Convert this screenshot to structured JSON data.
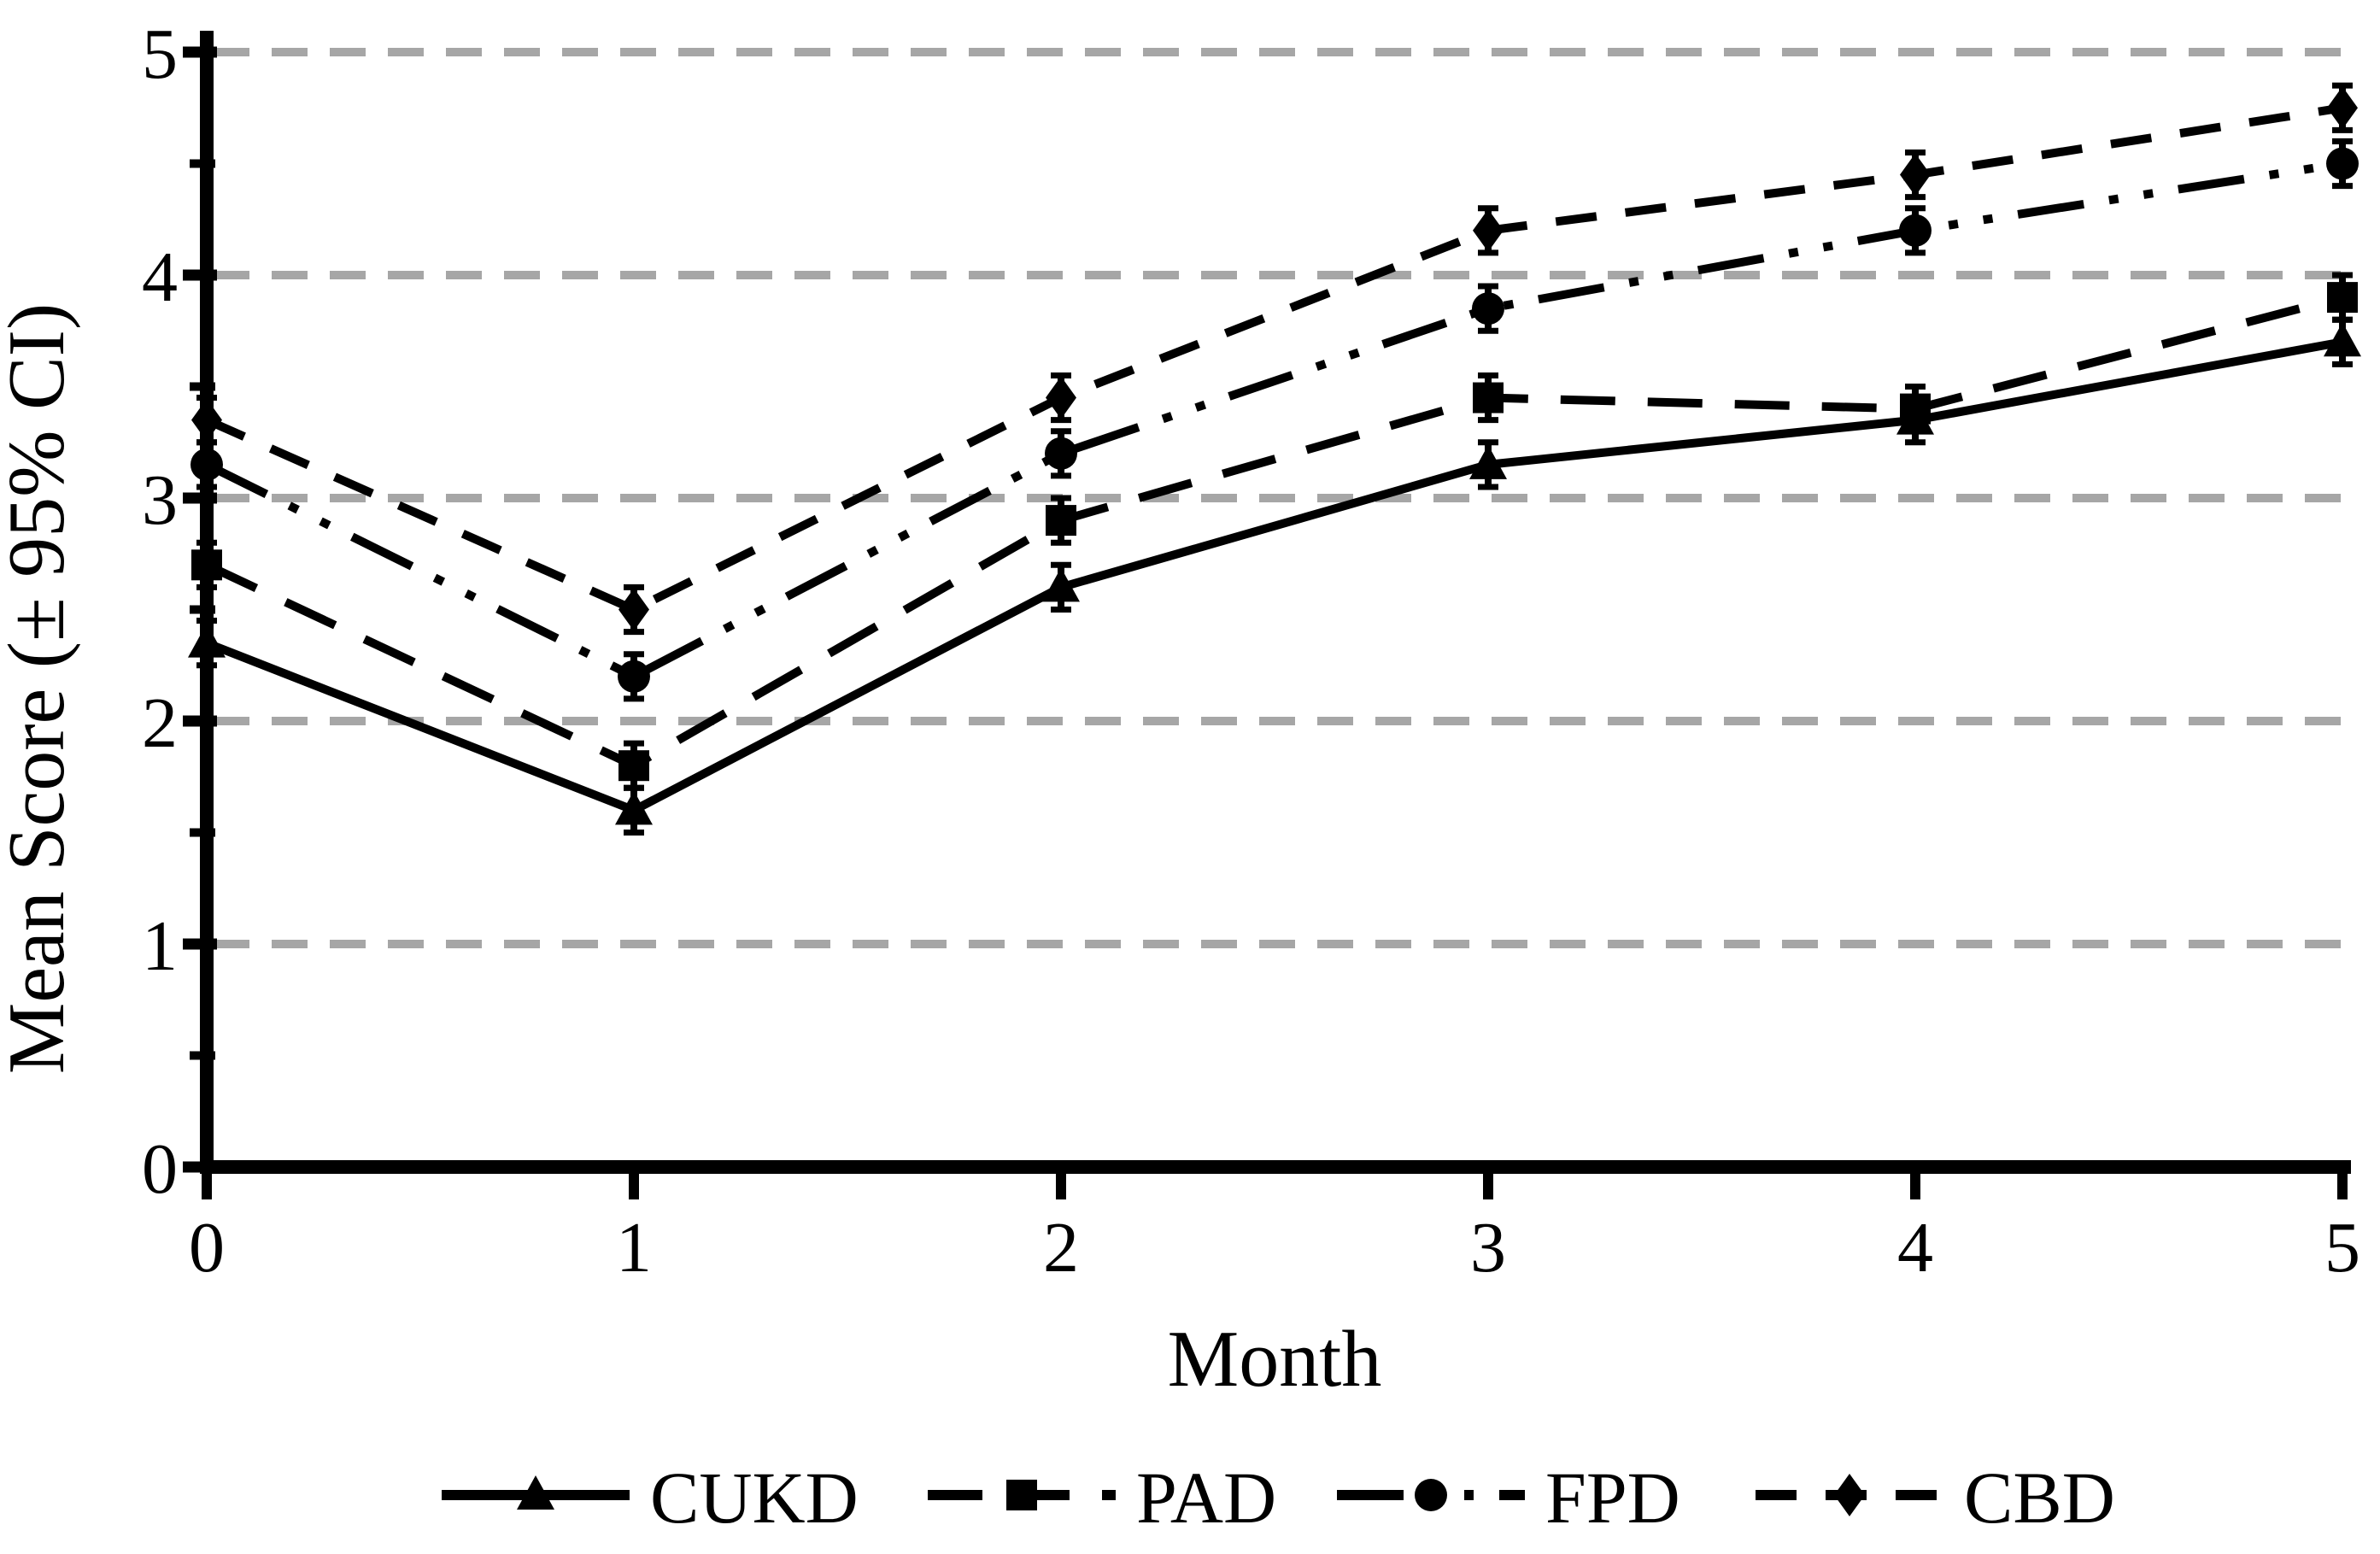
{
  "figure": {
    "background": "#ffffff",
    "line_color": "#000000",
    "grid_color": "#a6a6a6"
  },
  "chart_data": {
    "type": "line",
    "title": "",
    "xlabel": "Month",
    "ylabel": "Mean Score (± 95% CI)",
    "x": [
      0,
      1,
      2,
      3,
      4,
      5
    ],
    "x_tick_labels": [
      "0",
      "1",
      "2",
      "3",
      "4",
      "5"
    ],
    "xlim": [
      0,
      5
    ],
    "ylim": [
      0,
      5
    ],
    "y_major_ticks": [
      0,
      1,
      2,
      3,
      4,
      5
    ],
    "y_tick_labels": [
      "0",
      "1",
      "2",
      "3",
      "4",
      "5"
    ],
    "y_minor_tick_step": 0.5,
    "grid": {
      "axis": "y",
      "values": [
        1,
        2,
        3,
        4,
        5
      ],
      "style": "dashed"
    },
    "legend_position": "bottom",
    "error_bar_halfwidth": 0.1,
    "series": [
      {
        "name": "CUKD",
        "marker": "triangle",
        "line_style": "solid",
        "values": [
          2.35,
          1.6,
          2.6,
          3.15,
          3.35,
          3.7
        ]
      },
      {
        "name": "PAD",
        "marker": "square",
        "line_style": "long-dash",
        "values": [
          2.7,
          1.8,
          2.9,
          3.45,
          3.4,
          3.9
        ]
      },
      {
        "name": "FPD",
        "marker": "circle",
        "line_style": "dash-dot-dot",
        "values": [
          3.15,
          2.2,
          3.2,
          3.85,
          4.2,
          4.5
        ]
      },
      {
        "name": "CBD",
        "marker": "diamond",
        "line_style": "dash",
        "values": [
          3.35,
          2.5,
          3.45,
          4.2,
          4.45,
          4.75
        ]
      }
    ]
  }
}
